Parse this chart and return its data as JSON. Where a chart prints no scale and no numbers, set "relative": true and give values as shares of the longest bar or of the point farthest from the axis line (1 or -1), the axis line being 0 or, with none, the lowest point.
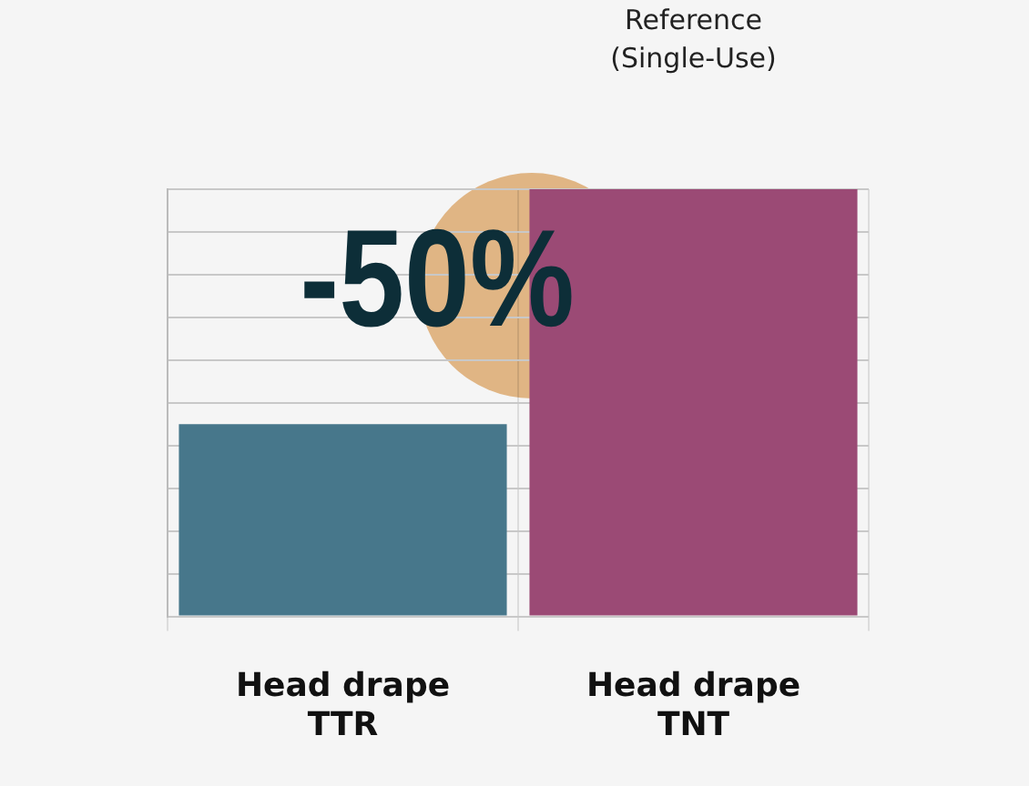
{
  "chart_data": {
    "type": "bar",
    "relative": true,
    "categories": [
      "Head drape TTR",
      "Head drape TNT"
    ],
    "values": [
      0.45,
      1
    ],
    "colors": [
      "#47778b",
      "#9b4a75"
    ],
    "grid": true,
    "annotations": [
      "Reference (Single-Use)",
      "-50%"
    ]
  }
}
